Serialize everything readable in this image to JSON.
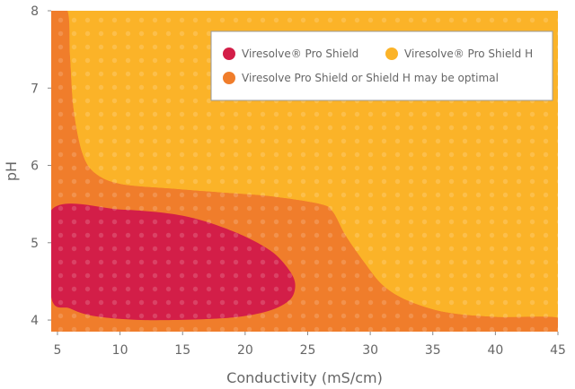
{
  "chart_data": {
    "type": "area",
    "title": "",
    "xlabel": "Conductivity (mS/cm)",
    "ylabel": "pH",
    "xlim": [
      4.5,
      45
    ],
    "ylim": [
      3.85,
      8
    ],
    "x_ticks": [
      "5",
      "10",
      "15",
      "20",
      "25",
      "30",
      "35",
      "40",
      "45"
    ],
    "y_ticks": [
      "4",
      "5",
      "6",
      "7",
      "8"
    ],
    "legend_position": "top-right",
    "regions": [
      {
        "name": "Viresolve® Pro Shield H",
        "color": "#fbb328",
        "boundary": [
          [
            5.8,
            8
          ],
          [
            45,
            8
          ],
          [
            45,
            4.03
          ],
          [
            40,
            4.04
          ],
          [
            36,
            4.1
          ],
          [
            33,
            4.25
          ],
          [
            31,
            4.45
          ],
          [
            29.5,
            4.75
          ],
          [
            28,
            5.1
          ],
          [
            27,
            5.4
          ],
          [
            26,
            5.5
          ],
          [
            22,
            5.6
          ],
          [
            18,
            5.65
          ],
          [
            14,
            5.7
          ],
          [
            10,
            5.76
          ],
          [
            8,
            5.9
          ],
          [
            7,
            6.15
          ],
          [
            6.3,
            6.7
          ],
          [
            6,
            7.4
          ],
          [
            5.8,
            8
          ]
        ]
      },
      {
        "name": "Viresolve Pro Shield or Shield H may be optimal",
        "color": "#f07d2b",
        "boundary": [
          [
            4.5,
            8
          ],
          [
            5.8,
            8
          ],
          [
            6,
            7.4
          ],
          [
            6.3,
            6.7
          ],
          [
            7,
            6.15
          ],
          [
            8,
            5.9
          ],
          [
            10,
            5.76
          ],
          [
            14,
            5.7
          ],
          [
            18,
            5.65
          ],
          [
            22,
            5.6
          ],
          [
            26,
            5.5
          ],
          [
            27,
            5.4
          ],
          [
            28,
            5.1
          ],
          [
            29.5,
            4.75
          ],
          [
            31,
            4.45
          ],
          [
            33,
            4.25
          ],
          [
            36,
            4.1
          ],
          [
            40,
            4.04
          ],
          [
            45,
            4.03
          ],
          [
            45,
            3.85
          ],
          [
            4.5,
            3.85
          ]
        ]
      },
      {
        "name": "Viresolve® Pro Shield",
        "color": "#d31e48",
        "boundary": [
          [
            4.5,
            5.42
          ],
          [
            10,
            5.43
          ],
          [
            15,
            5.35
          ],
          [
            19,
            5.15
          ],
          [
            22,
            4.9
          ],
          [
            23.5,
            4.65
          ],
          [
            24,
            4.45
          ],
          [
            23.5,
            4.25
          ],
          [
            21.5,
            4.1
          ],
          [
            18,
            4.02
          ],
          [
            12,
            4
          ],
          [
            8,
            4.05
          ],
          [
            6,
            4.15
          ],
          [
            4.5,
            4.3
          ]
        ]
      }
    ],
    "legend": [
      {
        "label": "Viresolve® Pro Shield",
        "color": "#d31e48"
      },
      {
        "label": "Viresolve® Pro Shield H",
        "color": "#fbb328"
      },
      {
        "label": "Viresolve Pro Shield or Shield H may be optimal",
        "color": "#f07d2b"
      }
    ],
    "dot_pattern": true
  }
}
